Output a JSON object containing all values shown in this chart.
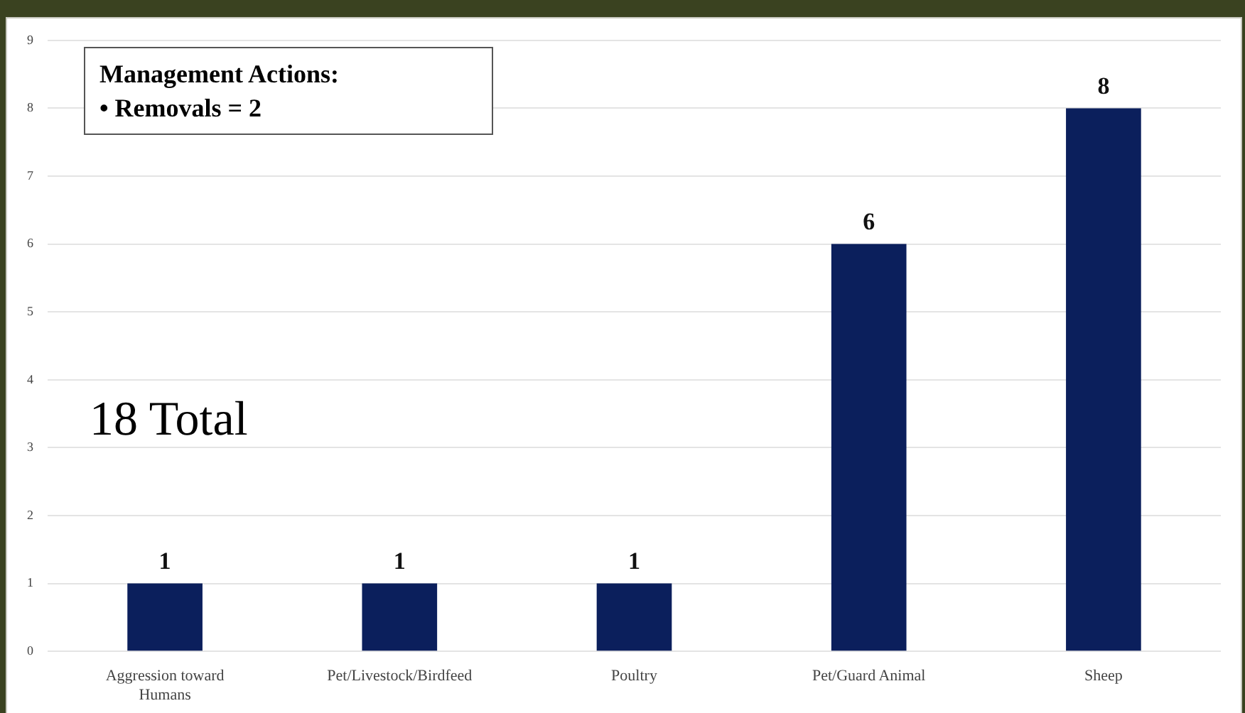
{
  "chart_data": {
    "type": "bar",
    "categories": [
      "Aggression toward Humans",
      "Pet/Livestock/Birdfeed",
      "Poultry",
      "Pet/Guard Animal",
      "Sheep"
    ],
    "values": [
      1,
      1,
      1,
      6,
      8
    ],
    "color": "#0b1f5c",
    "ylim": [
      0,
      9
    ],
    "yticks": [
      0,
      1,
      2,
      3,
      4,
      5,
      6,
      7,
      8,
      9
    ],
    "grid": "y",
    "data_labels": true,
    "annotations": [
      "Management Actions:",
      "• Removals = 2",
      "18 Total"
    ]
  }
}
